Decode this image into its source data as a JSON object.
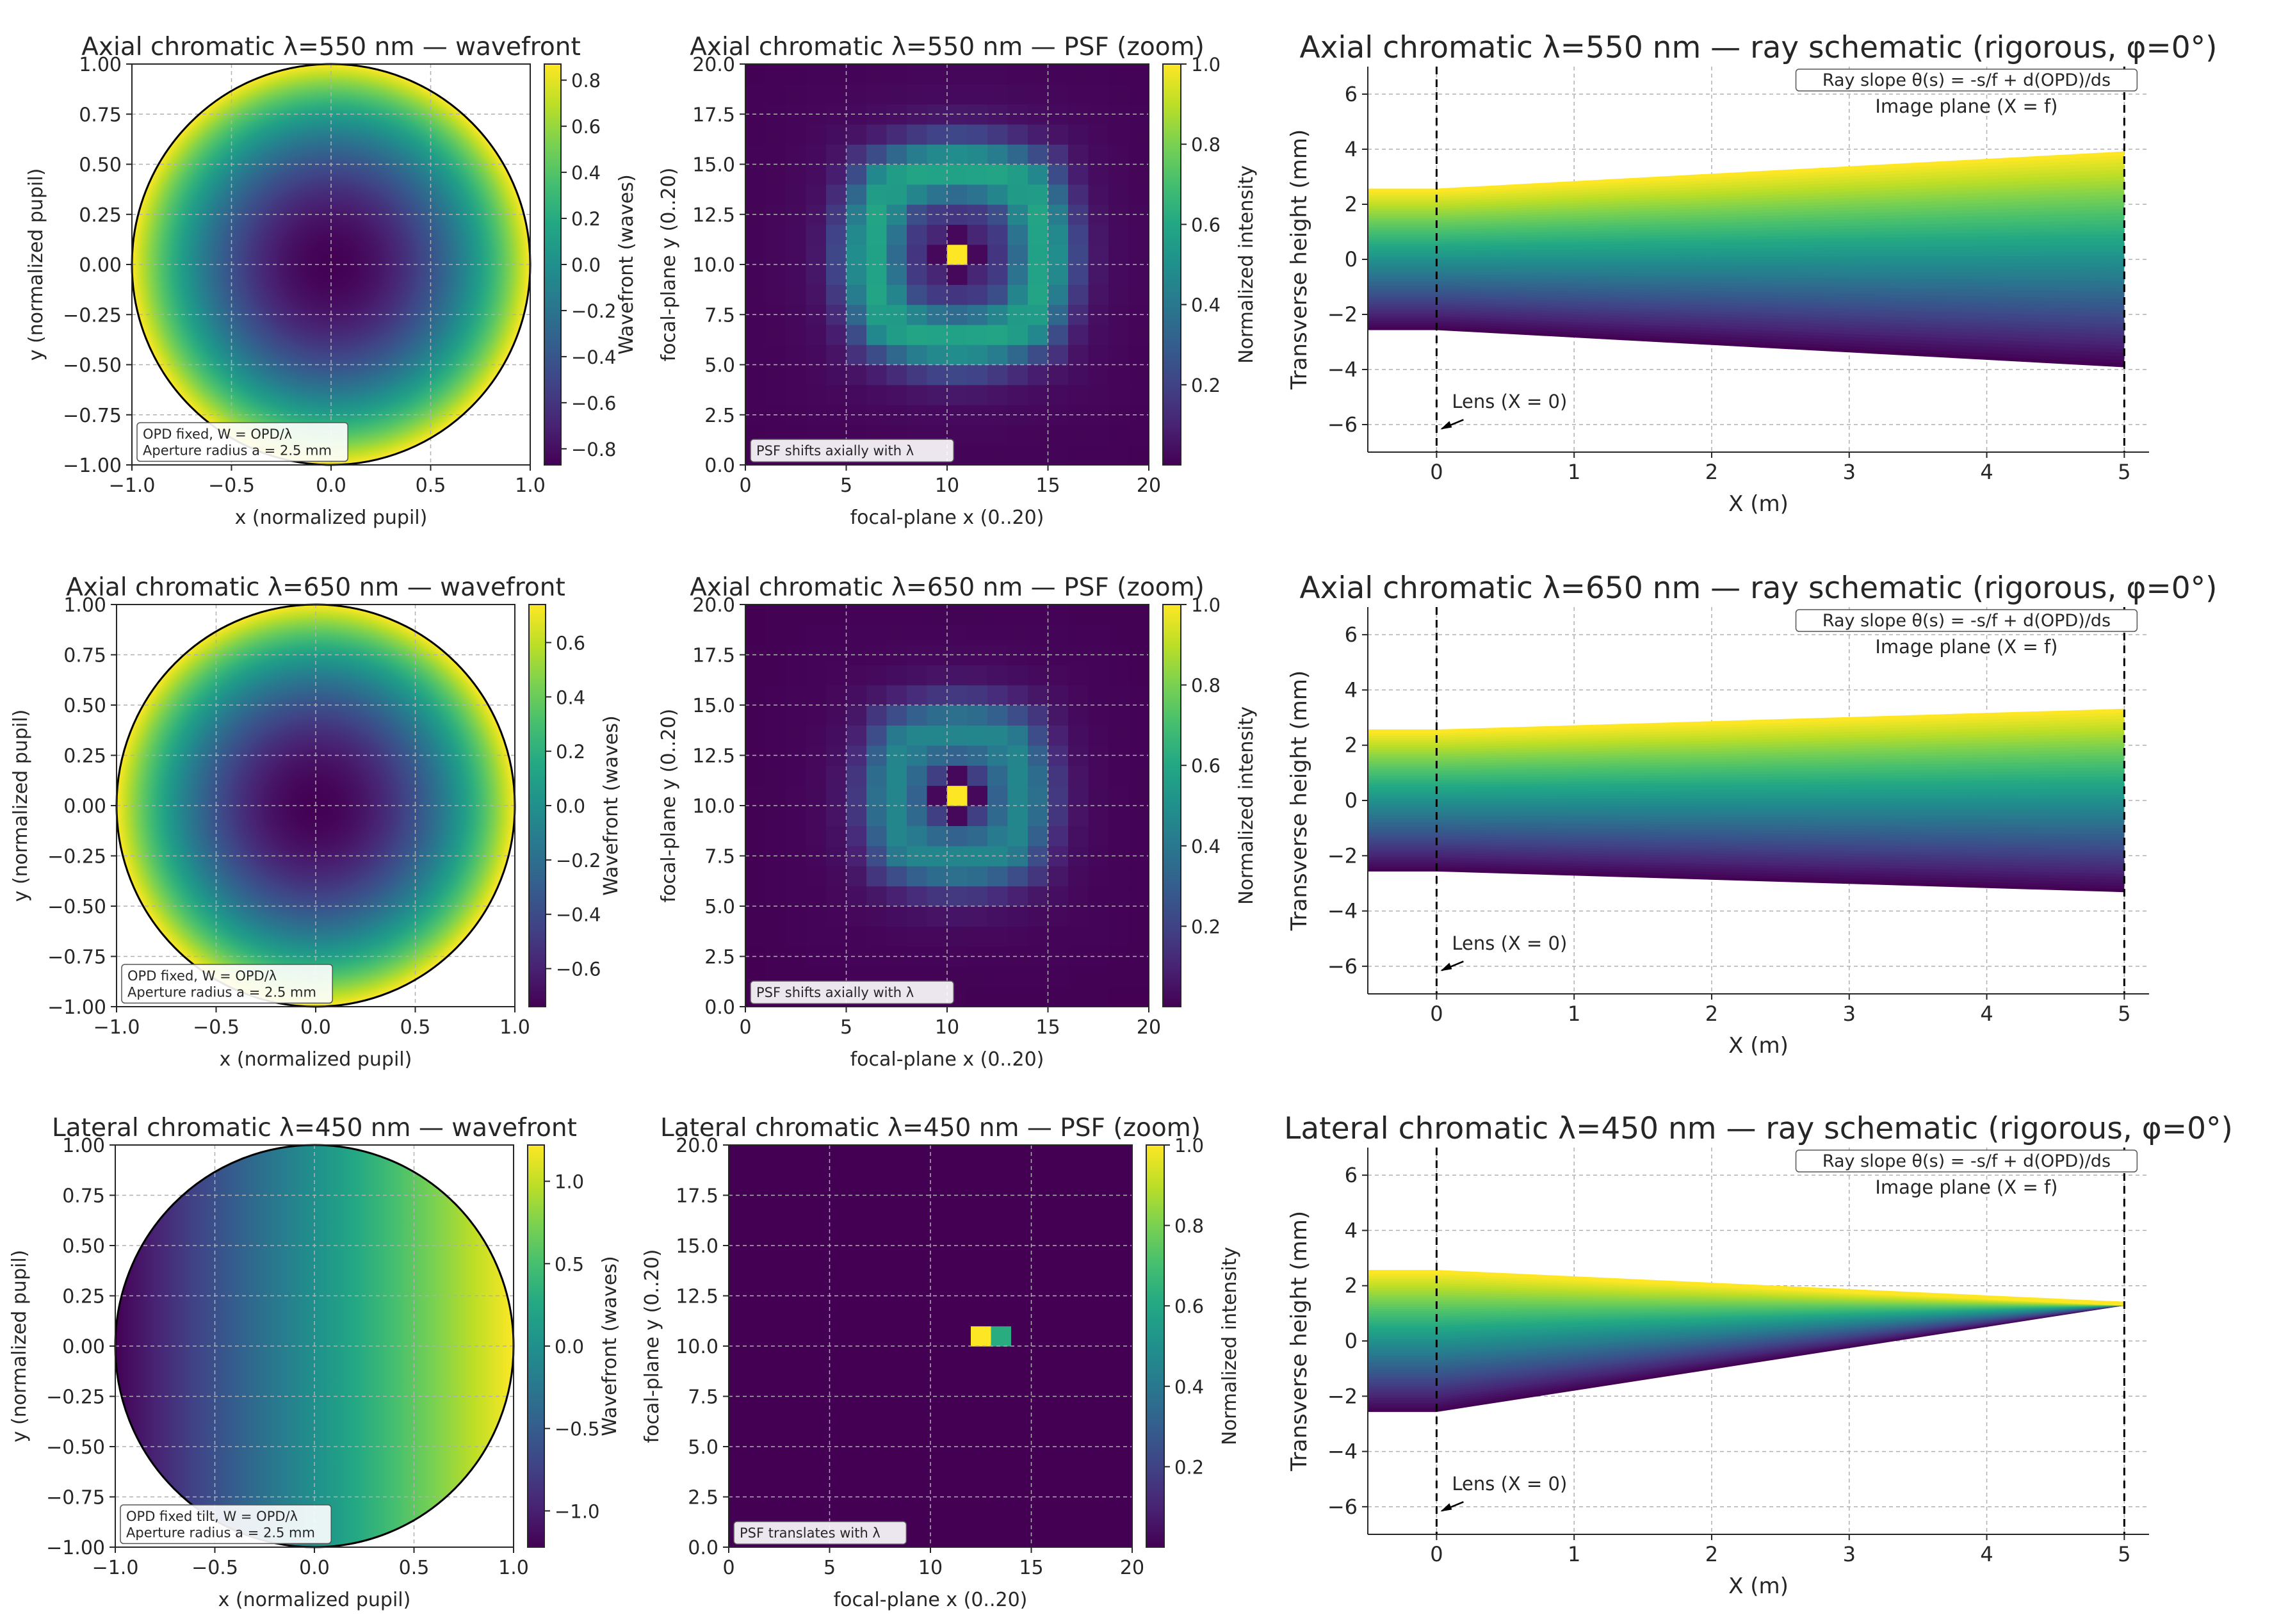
{
  "chart_data": [
    {
      "id": "wf_ax550",
      "type": "heatmap",
      "kind": "wavefront",
      "title": "Axial chromatic  λ=550 nm — wavefront",
      "xlabel": "x (normalized pupil)",
      "ylabel": "y (normalized pupil)",
      "xlim": [
        -1,
        1
      ],
      "ylim": [
        -1,
        1
      ],
      "xticks": [
        -1,
        -0.5,
        0,
        0.5,
        1
      ],
      "xtick_labels": [
        "−1.0",
        "−0.5",
        "0.0",
        "0.5",
        "1.0"
      ],
      "yticks": [
        -1,
        -0.75,
        -0.5,
        -0.25,
        0,
        0.25,
        0.5,
        0.75,
        1
      ],
      "ytick_labels": [
        "−1.00",
        "−0.75",
        "−0.50",
        "−0.25",
        "0.00",
        "0.25",
        "0.50",
        "0.75",
        "1.00"
      ],
      "colorbar": {
        "label": "Wavefront (waves)",
        "range": [
          -0.87,
          0.87
        ],
        "ticks": [
          -0.8,
          -0.6,
          -0.4,
          -0.2,
          0,
          0.2,
          0.4,
          0.6,
          0.8
        ],
        "tick_labels": [
          "−0.8",
          "−0.6",
          "−0.4",
          "−0.2",
          "0.0",
          "0.2",
          "0.4",
          "0.6",
          "0.8"
        ]
      },
      "model": {
        "form": "defocus",
        "min": -0.87,
        "max": 0.87
      },
      "annotation": [
        "OPD fixed, W = OPD/λ",
        "Aperture radius a = 2.5 mm"
      ]
    },
    {
      "id": "psf_ax550",
      "type": "heatmap",
      "kind": "psf",
      "title": "Axial chromatic  λ=550 nm — PSF (zoom)",
      "xlabel": "focal-plane x (0..20)",
      "ylabel": "focal-plane y (0..20)",
      "xlim": [
        0,
        20
      ],
      "ylim": [
        0,
        20
      ],
      "xticks": [
        0,
        5,
        10,
        15,
        20
      ],
      "xtick_labels": [
        "0",
        "5",
        "10",
        "15",
        "20"
      ],
      "yticks": [
        0,
        2.5,
        5,
        7.5,
        10,
        12.5,
        15,
        17.5,
        20
      ],
      "ytick_labels": [
        "0.0",
        "2.5",
        "5.0",
        "7.5",
        "10.0",
        "12.5",
        "15.0",
        "17.5",
        "20.0"
      ],
      "colorbar": {
        "label": "Normalized intensity",
        "range": [
          0,
          1
        ],
        "ticks": [
          0.2,
          0.4,
          0.6,
          0.8,
          1.0
        ],
        "tick_labels": [
          "0.2",
          "0.4",
          "0.6",
          "0.8",
          "1.0"
        ]
      },
      "model": {
        "form": "rings",
        "center": [
          10,
          10
        ],
        "ring_peak": 0.52,
        "ring_radius": 4.3,
        "ring_width": 1.6,
        "halo": 0.1,
        "gap_radius": 1.0,
        "center_value": 1.0
      },
      "annotation": [
        "PSF shifts axially with λ"
      ]
    },
    {
      "id": "ray_ax550",
      "type": "line",
      "kind": "ray-fan",
      "title": "Axial chromatic  λ=550 nm — ray schematic (rigorous, φ=0°)",
      "xlabel": "X (m)",
      "ylabel": "Transverse height (mm)",
      "xlim": [
        -0.5,
        5.18
      ],
      "ylim": [
        -7,
        7
      ],
      "xticks": [
        0,
        1,
        2,
        3,
        4,
        5
      ],
      "xtick_labels": [
        "0",
        "1",
        "2",
        "3",
        "4",
        "5"
      ],
      "yticks": [
        -6,
        -4,
        -2,
        0,
        2,
        4,
        6
      ],
      "ytick_labels": [
        "−6",
        "−4",
        "−2",
        "0",
        "2",
        "4",
        "6"
      ],
      "rays": {
        "count": 60,
        "aperture_mm": 2.5,
        "x_start": -0.5,
        "x_lens": 0,
        "x_image": 5,
        "end_heights": [
          -3.85,
          3.85
        ]
      },
      "annotations": {
        "formula": "Ray slope θ(s) = -s/f + d(OPD)/ds",
        "image_plane": "Image plane (X = f)",
        "lens": "Lens (X = 0)"
      }
    },
    {
      "id": "wf_ax650",
      "type": "heatmap",
      "kind": "wavefront",
      "title": "Axial chromatic  λ=650 nm — wavefront",
      "xlabel": "x (normalized pupil)",
      "ylabel": "y (normalized pupil)",
      "xlim": [
        -1,
        1
      ],
      "ylim": [
        -1,
        1
      ],
      "xticks": [
        -1,
        -0.5,
        0,
        0.5,
        1
      ],
      "xtick_labels": [
        "−1.0",
        "−0.5",
        "0.0",
        "0.5",
        "1.0"
      ],
      "yticks": [
        -1,
        -0.75,
        -0.5,
        -0.25,
        0,
        0.25,
        0.5,
        0.75,
        1
      ],
      "ytick_labels": [
        "−1.00",
        "−0.75",
        "−0.50",
        "−0.25",
        "0.00",
        "0.25",
        "0.50",
        "0.75",
        "1.00"
      ],
      "colorbar": {
        "label": "Wavefront (waves)",
        "range": [
          -0.74,
          0.74
        ],
        "ticks": [
          -0.6,
          -0.4,
          -0.2,
          0,
          0.2,
          0.4,
          0.6
        ],
        "tick_labels": [
          "−0.6",
          "−0.4",
          "−0.2",
          "0.0",
          "0.2",
          "0.4",
          "0.6"
        ]
      },
      "model": {
        "form": "defocus",
        "min": -0.74,
        "max": 0.74
      },
      "annotation": [
        "OPD fixed, W = OPD/λ",
        "Aperture radius a = 2.5 mm"
      ]
    },
    {
      "id": "psf_ax650",
      "type": "heatmap",
      "kind": "psf",
      "title": "Axial chromatic  λ=650 nm — PSF (zoom)",
      "xlabel": "focal-plane x (0..20)",
      "ylabel": "focal-plane y (0..20)",
      "xlim": [
        0,
        20
      ],
      "ylim": [
        0,
        20
      ],
      "xticks": [
        0,
        5,
        10,
        15,
        20
      ],
      "xtick_labels": [
        "0",
        "5",
        "10",
        "15",
        "20"
      ],
      "yticks": [
        0,
        2.5,
        5,
        7.5,
        10,
        12.5,
        15,
        17.5,
        20
      ],
      "ytick_labels": [
        "0.0",
        "2.5",
        "5.0",
        "7.5",
        "10.0",
        "12.5",
        "15.0",
        "17.5",
        "20.0"
      ],
      "colorbar": {
        "label": "Normalized intensity",
        "range": [
          0,
          1
        ],
        "ticks": [
          0.2,
          0.4,
          0.6,
          0.8,
          1.0
        ],
        "tick_labels": [
          "0.2",
          "0.4",
          "0.6",
          "0.8",
          "1.0"
        ]
      },
      "model": {
        "form": "rings",
        "center": [
          10,
          10
        ],
        "ring_peak": 0.4,
        "ring_radius": 3.2,
        "ring_width": 1.7,
        "halo": 0.08,
        "gap_radius": 1.0,
        "center_value": 1.0
      },
      "annotation": [
        "PSF shifts axially with λ"
      ]
    },
    {
      "id": "ray_ax650",
      "type": "line",
      "kind": "ray-fan",
      "title": "Axial chromatic  λ=650 nm — ray schematic (rigorous, φ=0°)",
      "xlabel": "X (m)",
      "ylabel": "Transverse height (mm)",
      "xlim": [
        -0.5,
        5.18
      ],
      "ylim": [
        -7,
        7
      ],
      "xticks": [
        0,
        1,
        2,
        3,
        4,
        5
      ],
      "xtick_labels": [
        "0",
        "1",
        "2",
        "3",
        "4",
        "5"
      ],
      "yticks": [
        -6,
        -4,
        -2,
        0,
        2,
        4,
        6
      ],
      "ytick_labels": [
        "−6",
        "−4",
        "−2",
        "0",
        "2",
        "4",
        "6"
      ],
      "rays": {
        "count": 60,
        "aperture_mm": 2.5,
        "x_start": -0.5,
        "x_lens": 0,
        "x_image": 5,
        "end_heights": [
          -3.25,
          3.25
        ]
      },
      "annotations": {
        "formula": "Ray slope θ(s) = -s/f + d(OPD)/ds",
        "image_plane": "Image plane (X = f)",
        "lens": "Lens (X = 0)"
      }
    },
    {
      "id": "wf_lat450",
      "type": "heatmap",
      "kind": "wavefront",
      "title": "Lateral chromatic  λ=450 nm — wavefront",
      "xlabel": "x (normalized pupil)",
      "ylabel": "y (normalized pupil)",
      "xlim": [
        -1,
        1
      ],
      "ylim": [
        -1,
        1
      ],
      "xticks": [
        -1,
        -0.5,
        0,
        0.5,
        1
      ],
      "xtick_labels": [
        "−1.0",
        "−0.5",
        "0.0",
        "0.5",
        "1.0"
      ],
      "yticks": [
        -1,
        -0.75,
        -0.5,
        -0.25,
        0,
        0.25,
        0.5,
        0.75,
        1
      ],
      "ytick_labels": [
        "−1.00",
        "−0.75",
        "−0.50",
        "−0.25",
        "0.00",
        "0.25",
        "0.50",
        "0.75",
        "1.00"
      ],
      "colorbar": {
        "label": "Wavefront (waves)",
        "range": [
          -1.22,
          1.22
        ],
        "ticks": [
          -1,
          -0.5,
          0,
          0.5,
          1
        ],
        "tick_labels": [
          "−1.0",
          "−0.5",
          "0.0",
          "0.5",
          "1.0"
        ]
      },
      "model": {
        "form": "tilt",
        "min": -1.22,
        "max": 1.22
      },
      "annotation": [
        "OPD fixed tilt, W = OPD/λ",
        "Aperture radius a = 2.5 mm"
      ]
    },
    {
      "id": "psf_lat450",
      "type": "heatmap",
      "kind": "psf",
      "title": "Lateral chromatic  λ=450 nm — PSF (zoom)",
      "xlabel": "focal-plane x (0..20)",
      "ylabel": "focal-plane y (0..20)",
      "xlim": [
        0,
        20
      ],
      "ylim": [
        0,
        20
      ],
      "xticks": [
        0,
        5,
        10,
        15,
        20
      ],
      "xtick_labels": [
        "0",
        "5",
        "10",
        "15",
        "20"
      ],
      "yticks": [
        0,
        2.5,
        5,
        7.5,
        10,
        12.5,
        15,
        17.5,
        20
      ],
      "ytick_labels": [
        "0.0",
        "2.5",
        "5.0",
        "7.5",
        "10.0",
        "12.5",
        "15.0",
        "17.5",
        "20.0"
      ],
      "colorbar": {
        "label": "Normalized intensity",
        "range": [
          0,
          1
        ],
        "ticks": [
          0.2,
          0.4,
          0.6,
          0.8,
          1.0
        ],
        "tick_labels": [
          "0.2",
          "0.4",
          "0.6",
          "0.8",
          "1.0"
        ]
      },
      "model": {
        "form": "points",
        "points": [
          [
            12,
            10,
            1.0
          ],
          [
            13,
            10,
            0.62
          ]
        ]
      },
      "annotation": [
        "PSF translates with λ"
      ]
    },
    {
      "id": "ray_lat450",
      "type": "line",
      "kind": "ray-fan",
      "title": "Lateral chromatic  λ=450 nm — ray schematic (rigorous, φ=0°)",
      "xlabel": "X (m)",
      "ylabel": "Transverse height (mm)",
      "xlim": [
        -0.5,
        5.18
      ],
      "ylim": [
        -7,
        7
      ],
      "xticks": [
        0,
        1,
        2,
        3,
        4,
        5
      ],
      "xtick_labels": [
        "0",
        "1",
        "2",
        "3",
        "4",
        "5"
      ],
      "yticks": [
        -6,
        -4,
        -2,
        0,
        2,
        4,
        6
      ],
      "ytick_labels": [
        "−6",
        "−4",
        "−2",
        "0",
        "2",
        "4",
        "6"
      ],
      "rays": {
        "count": 60,
        "aperture_mm": 2.5,
        "x_start": -0.5,
        "x_lens": 0,
        "x_image": 5,
        "end_heights": [
          1.35,
          1.35
        ]
      },
      "annotations": {
        "formula": "Ray slope θ(s) = -s/f + d(OPD)/ds",
        "image_plane": "Image plane (X = f)",
        "lens": "Lens (X = 0)"
      }
    }
  ]
}
